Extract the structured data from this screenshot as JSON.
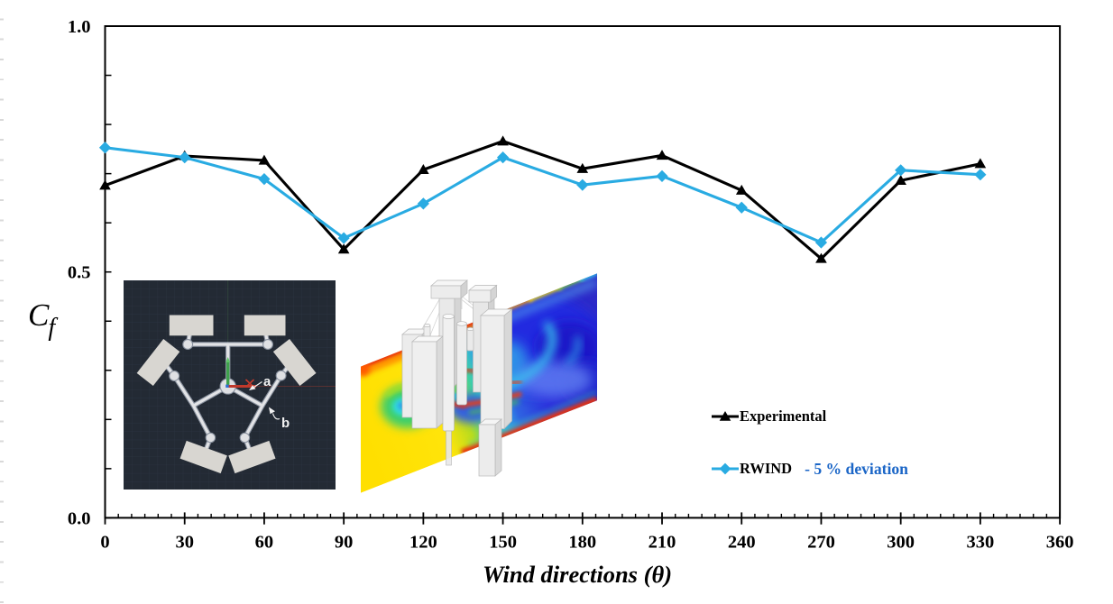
{
  "page": {
    "background": "#ffffff"
  },
  "chart_data": {
    "type": "line",
    "title": "",
    "xlabel": "Wind directions (θ)",
    "ylabel": "Cf",
    "ylabel_main": "C",
    "ylabel_sub": "f",
    "x": [
      0,
      30,
      60,
      90,
      120,
      150,
      180,
      210,
      240,
      270,
      300,
      330
    ],
    "series": [
      {
        "name": "Experimental",
        "color": "#000000",
        "marker": "triangle",
        "values": [
          0.676,
          0.736,
          0.727,
          0.546,
          0.708,
          0.766,
          0.71,
          0.737,
          0.666,
          0.527,
          0.686,
          0.72
        ]
      },
      {
        "name": "RWIND",
        "color": "#29abe2",
        "marker": "diamond",
        "values": [
          0.753,
          0.733,
          0.689,
          0.569,
          0.639,
          0.733,
          0.677,
          0.695,
          0.631,
          0.56,
          0.707,
          0.698
        ]
      }
    ],
    "xlim": [
      0,
      360
    ],
    "ylim": [
      0,
      1
    ],
    "x_tick_labels": [
      "0",
      "30",
      "60",
      "90",
      "120",
      "150",
      "180",
      "210",
      "240",
      "270",
      "300",
      "330",
      "360"
    ],
    "x_major_step": 30,
    "x_minor_step": 5,
    "y_tick_labels": [
      "0.0",
      "0.5",
      "1.0"
    ],
    "y_tick_values": [
      0,
      0.5,
      1
    ],
    "y_minor_step": 0.1,
    "grid": false,
    "legend_position": "center-right"
  },
  "legend": {
    "entries": [
      {
        "label": "Experimental",
        "suffix": "",
        "suffix_color": "#1b66c7",
        "color": "#000000",
        "marker": "triangle"
      },
      {
        "label": "RWIND",
        "suffix": "- 5 % deviation",
        "suffix_color": "#1b66c7",
        "color": "#29abe2",
        "marker": "diamond"
      }
    ]
  },
  "insets": {
    "cad": {
      "labels": {
        "a": "a",
        "b": "b"
      }
    },
    "cfd": {}
  }
}
